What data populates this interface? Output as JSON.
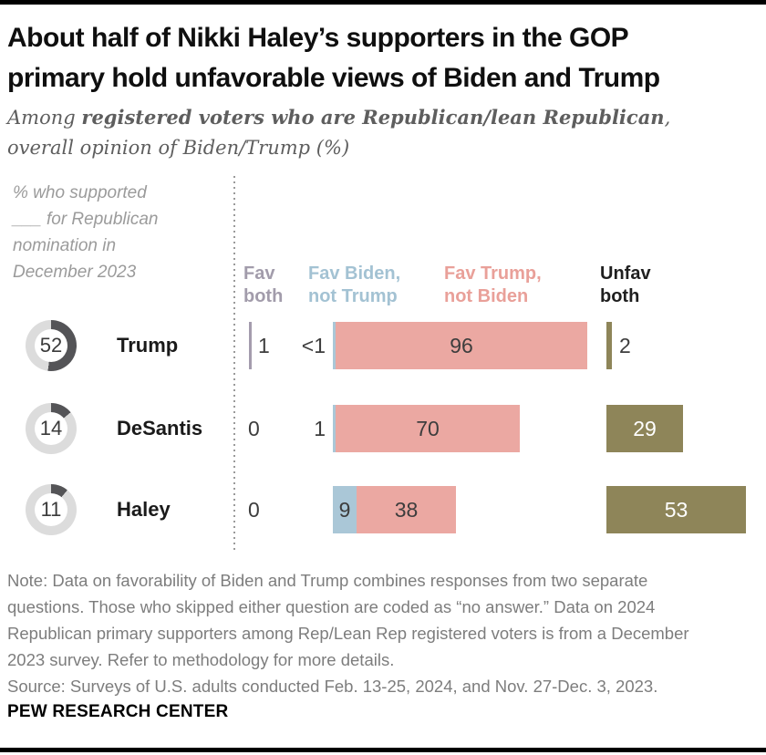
{
  "header": {
    "title_line1": "About half of Nikki Haley’s supporters in the GOP",
    "title_line2": "primary hold unfavorable views of Biden and Trump",
    "subtitle_prefix": "Among ",
    "subtitle_bold": "registered voters who are Republican/lean Republican",
    "subtitle_suffix": ",",
    "subtitle_line2": "overall opinion of Biden/Trump (%)"
  },
  "chart_data": {
    "type": "bar",
    "orientation": "horizontal-stacked",
    "title": "About half of Nikki Haley’s supporters in the GOP primary hold unfavorable views of Biden and Trump",
    "subtitle": "Among registered voters who are Republican/lean Republican, overall opinion of Biden/Trump (%)",
    "annotation_lines": [
      "% who supported",
      "___ for Republican",
      "nomination in",
      "December 2023"
    ],
    "categories": [
      "Trump",
      "DeSantis",
      "Haley"
    ],
    "category_support_pct": [
      52,
      14,
      11
    ],
    "donut_colors": {
      "filled": "#545457",
      "rest": "#dcdcdc"
    },
    "xlim": [
      0,
      100
    ],
    "series": [
      {
        "name": "Fav both",
        "header_lines": [
          "Fav",
          "both"
        ],
        "color": "#a49cad",
        "header_color": "#a29cab",
        "values": [
          1,
          0,
          0
        ],
        "labels": [
          "1",
          "0",
          "0"
        ]
      },
      {
        "name": "Fav Biden, not Trump",
        "header_lines": [
          "Fav Biden,",
          "not Trump"
        ],
        "color": "#aac7d7",
        "header_color": "#a3c2d3",
        "values": [
          0.5,
          1,
          9
        ],
        "labels": [
          "<1",
          "1",
          "9"
        ]
      },
      {
        "name": "Fav Trump, not Biden",
        "header_lines": [
          "Fav Trump,",
          "not Biden"
        ],
        "color": "#eba8a2",
        "header_color": "#e9a099",
        "values": [
          96,
          70,
          38
        ],
        "labels": [
          "96",
          "70",
          "38"
        ]
      },
      {
        "name": "Unfav both",
        "header_lines": [
          "Unfav",
          "both"
        ],
        "color": "#8e8559",
        "header_color": "#1f1f1f",
        "values": [
          2,
          29,
          53
        ],
        "labels": [
          "2",
          "29",
          "53"
        ]
      }
    ]
  },
  "notes": {
    "lines": [
      "Note: Data on favorability of Biden and Trump combines responses from two separate",
      "questions. Those who skipped either question are coded as “no answer.” Data on 2024",
      "Republican primary supporters among Rep/Lean Rep registered voters is from a December",
      "2023 survey. Refer to methodology for more details.",
      "Source: Surveys of U.S. adults conducted Feb. 13-25, 2024, and Nov. 27-Dec. 3, 2023."
    ]
  },
  "brand": "PEW RESEARCH CENTER"
}
